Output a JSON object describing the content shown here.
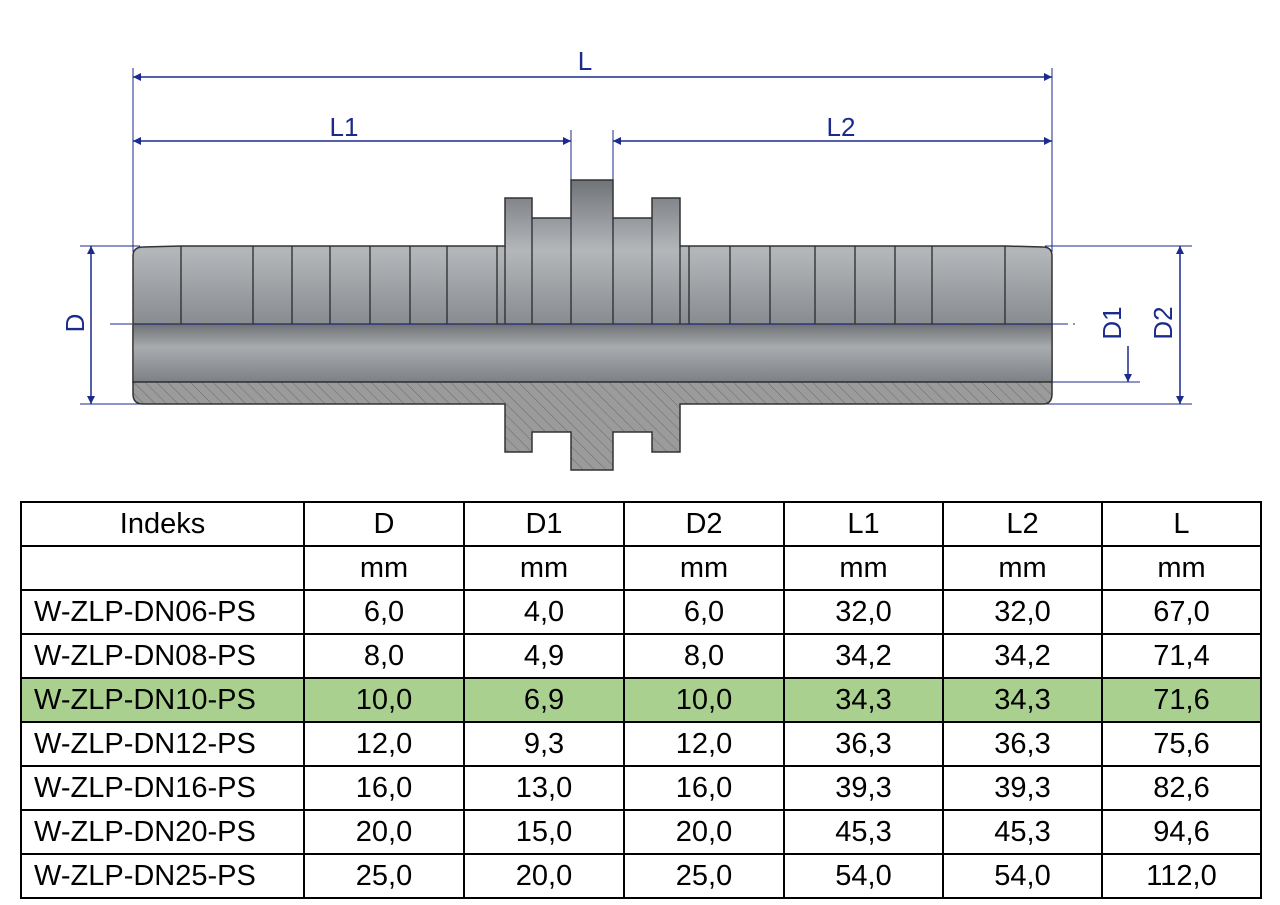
{
  "drawing": {
    "labels": {
      "L": "L",
      "L1": "L1",
      "L2": "L2",
      "D": "D",
      "D1": "D1",
      "D2": "D2"
    },
    "colors": {
      "dimension": "#1b2a8c",
      "part_body": "#8f9296",
      "section_fill": "#9b9b9b",
      "highlight_row": "#a9d08e"
    }
  },
  "table": {
    "headers": [
      "Indeks",
      "D",
      "D1",
      "D2",
      "L1",
      "L2",
      "L"
    ],
    "units": [
      "",
      "mm",
      "mm",
      "mm",
      "mm",
      "mm",
      "mm"
    ],
    "highlighted_index": "W-ZLP-DN10-PS",
    "rows": [
      [
        "W-ZLP-DN06-PS",
        "6,0",
        "4,0",
        "6,0",
        "32,0",
        "32,0",
        "67,0"
      ],
      [
        "W-ZLP-DN08-PS",
        "8,0",
        "4,9",
        "8,0",
        "34,2",
        "34,2",
        "71,4"
      ],
      [
        "W-ZLP-DN10-PS",
        "10,0",
        "6,9",
        "10,0",
        "34,3",
        "34,3",
        "71,6"
      ],
      [
        "W-ZLP-DN12-PS",
        "12,0",
        "9,3",
        "12,0",
        "36,3",
        "36,3",
        "75,6"
      ],
      [
        "W-ZLP-DN16-PS",
        "16,0",
        "13,0",
        "16,0",
        "39,3",
        "39,3",
        "82,6"
      ],
      [
        "W-ZLP-DN20-PS",
        "20,0",
        "15,0",
        "20,0",
        "45,3",
        "45,3",
        "94,6"
      ],
      [
        "W-ZLP-DN25-PS",
        "25,0",
        "20,0",
        "25,0",
        "54,0",
        "54,0",
        "112,0"
      ]
    ]
  }
}
